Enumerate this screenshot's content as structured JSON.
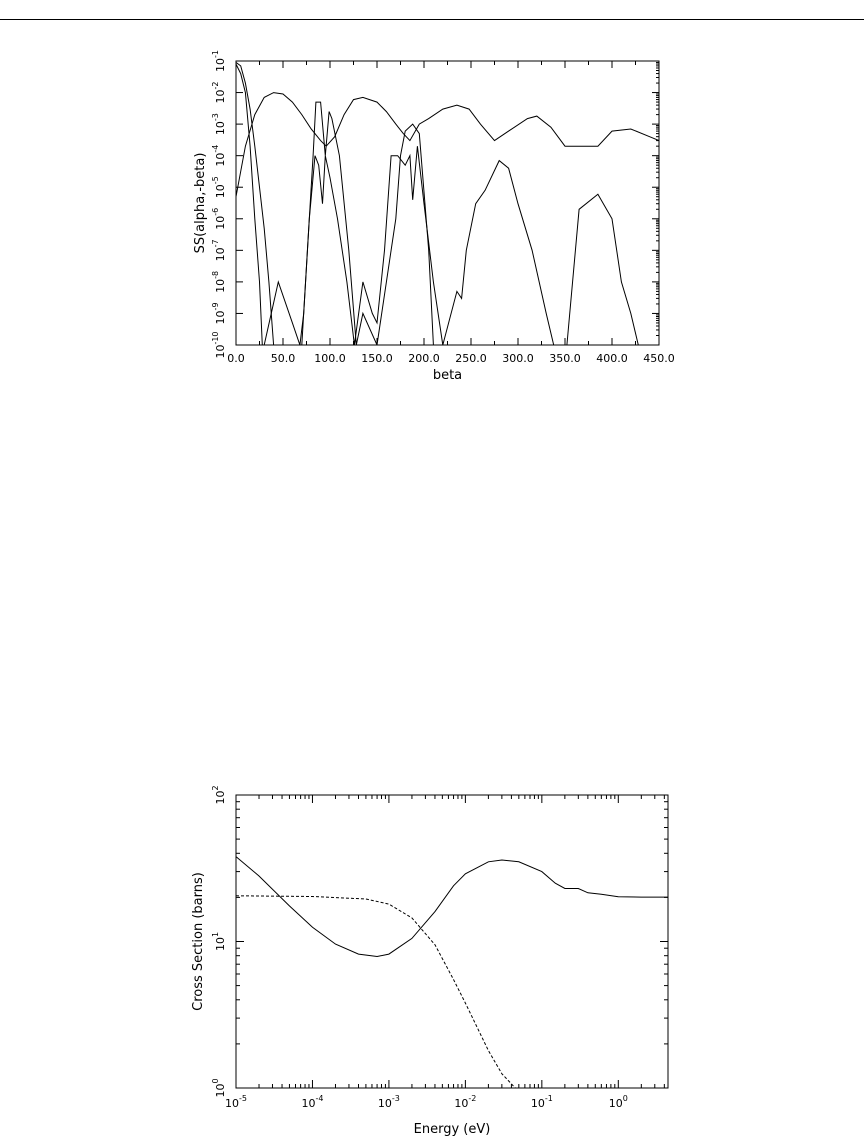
{
  "chart_data": [
    {
      "type": "line",
      "xlabel": "beta",
      "ylabel": "SS(alpha,-beta)",
      "xlim": [
        0,
        450
      ],
      "ylim_log10": [
        -10,
        -1
      ],
      "y_scale": "log",
      "x_tick_labels": [
        "0.0",
        "50.0",
        "100.0",
        "150.0",
        "200.0",
        "250.0",
        "300.0",
        "350.0",
        "400.0",
        "450.0"
      ],
      "y_tick_labels": [
        {
          "base": "10",
          "exp": "-10"
        },
        {
          "base": "10",
          "exp": "-9"
        },
        {
          "base": "10",
          "exp": "-8"
        },
        {
          "base": "10",
          "exp": "-7"
        },
        {
          "base": "10",
          "exp": "-6"
        },
        {
          "base": "10",
          "exp": "-5"
        },
        {
          "base": "10",
          "exp": "-4"
        },
        {
          "base": "10",
          "exp": "-3"
        },
        {
          "base": "10",
          "exp": "-2"
        },
        {
          "base": "10",
          "exp": "-1"
        }
      ],
      "series": [
        {
          "values": [
            [
              0,
              0.09
            ],
            [
              5,
              0.07
            ],
            [
              10,
              0.02
            ],
            [
              15,
              0.003
            ],
            [
              20,
              0.0002
            ],
            [
              25,
              1e-05
            ],
            [
              30,
              5e-07
            ],
            [
              35,
              1e-08
            ],
            [
              40,
              1e-10
            ]
          ]
        },
        {
          "values": [
            [
              0,
              0.08
            ],
            [
              5,
              0.04
            ],
            [
              10,
              0.01
            ],
            [
              15,
              0.0002
            ],
            [
              20,
              1e-06
            ],
            [
              25,
              1e-08
            ],
            [
              28,
              1e-10
            ]
          ]
        },
        {
          "values": [
            [
              0,
              5e-06
            ],
            [
              10,
              0.0002
            ],
            [
              20,
              0.002
            ],
            [
              30,
              0.007
            ],
            [
              40,
              0.01
            ],
            [
              50,
              0.009
            ],
            [
              60,
              0.005
            ],
            [
              70,
              0.002
            ],
            [
              80,
              0.0007
            ],
            [
              90,
              0.0003
            ],
            [
              96,
              0.0002
            ],
            [
              105,
              0.0004
            ],
            [
              115,
              0.002
            ],
            [
              125,
              0.006
            ],
            [
              135,
              0.007
            ],
            [
              150,
              0.005
            ],
            [
              160,
              0.0025
            ],
            [
              170,
              0.001
            ],
            [
              178,
              0.0005
            ],
            [
              185,
              0.0003
            ],
            [
              195,
              0.001
            ],
            [
              205,
              0.0015
            ],
            [
              220,
              0.003
            ],
            [
              235,
              0.004
            ],
            [
              248,
              0.003
            ],
            [
              260,
              0.001
            ],
            [
              275,
              0.0003
            ],
            [
              290,
              0.0006
            ],
            [
              310,
              0.0015
            ],
            [
              320,
              0.0018
            ],
            [
              335,
              0.0008
            ],
            [
              350,
              0.0002
            ],
            [
              370,
              0.0002
            ],
            [
              385,
              0.0002
            ],
            [
              400,
              0.0006
            ],
            [
              420,
              0.0007
            ],
            [
              440,
              0.0004
            ],
            [
              450,
              0.0003
            ]
          ]
        },
        {
          "values": [
            [
              30,
              1e-10
            ],
            [
              45,
              1e-08
            ],
            [
              60,
              5e-10
            ],
            [
              68,
              1e-10
            ],
            [
              72,
              1e-09
            ],
            [
              78,
              1e-06
            ],
            [
              82,
              0.0001
            ],
            [
              85,
              0.005
            ],
            [
              90,
              0.005
            ],
            [
              95,
              0.0001
            ],
            [
              99,
              0.0025
            ],
            [
              102,
              0.0015
            ],
            [
              110,
              0.0001
            ],
            [
              120,
              1e-07
            ],
            [
              128,
              1e-10
            ],
            [
              135,
              1e-09
            ],
            [
              150,
              1e-10
            ],
            [
              160,
              1e-08
            ],
            [
              170,
              1e-06
            ],
            [
              175,
              0.0001
            ],
            [
              180,
              0.0006
            ],
            [
              188,
              0.001
            ],
            [
              195,
              0.0005
            ],
            [
              205,
              1e-07
            ],
            [
              210,
              1e-10
            ]
          ]
        },
        {
          "values": [
            [
              70,
              1e-10
            ],
            [
              78,
              1e-06
            ],
            [
              84,
              0.0001
            ],
            [
              88,
              5e-05
            ],
            [
              92,
              3e-06
            ],
            [
              95,
              0.0001
            ],
            [
              100,
              2e-05
            ],
            [
              108,
              1e-06
            ],
            [
              118,
              1e-08
            ],
            [
              126,
              1e-10
            ],
            [
              135,
              1e-08
            ],
            [
              145,
              1e-09
            ],
            [
              150,
              5e-10
            ],
            [
              158,
              1e-07
            ],
            [
              165,
              0.0001
            ],
            [
              172,
              0.0001
            ],
            [
              180,
              5e-05
            ],
            [
              185,
              0.0001
            ],
            [
              188,
              4e-06
            ],
            [
              193,
              0.0002
            ],
            [
              200,
              3e-06
            ],
            [
              210,
              1e-08
            ],
            [
              220,
              1e-10
            ],
            [
              235,
              5e-09
            ],
            [
              240,
              3e-09
            ],
            [
              245,
              1e-07
            ],
            [
              255,
              3e-06
            ],
            [
              265,
              8e-06
            ],
            [
              280,
              7e-05
            ],
            [
              290,
              4e-05
            ],
            [
              300,
              3e-06
            ],
            [
              315,
              1e-07
            ],
            [
              330,
              1e-09
            ],
            [
              338,
              1e-10
            ],
            [
              352,
              1e-10
            ],
            [
              365,
              2e-06
            ],
            [
              385,
              6e-06
            ],
            [
              400,
              1e-06
            ],
            [
              410,
              1e-08
            ],
            [
              420,
              1e-09
            ],
            [
              428,
              1e-10
            ]
          ]
        }
      ]
    },
    {
      "type": "line",
      "xlabel": "Energy (eV)",
      "ylabel": "Cross Section (barns)",
      "x_scale": "log",
      "y_scale": "log",
      "xlim_log10": [
        -5,
        0.65
      ],
      "ylim_log10": [
        0,
        2
      ],
      "x_tick_labels": [
        {
          "base": "10",
          "exp": "-5"
        },
        {
          "base": "10",
          "exp": "-4"
        },
        {
          "base": "10",
          "exp": "-3"
        },
        {
          "base": "10",
          "exp": "-2"
        },
        {
          "base": "10",
          "exp": "-1"
        },
        {
          "base": "10",
          "exp": "0"
        }
      ],
      "y_tick_labels": [
        {
          "base": "10",
          "exp": "0"
        },
        {
          "base": "10",
          "exp": "1"
        },
        {
          "base": "10",
          "exp": "2"
        }
      ],
      "series": [
        {
          "style": "solid",
          "values": [
            [
              1e-05,
              38
            ],
            [
              2e-05,
              28
            ],
            [
              5e-05,
              17.5
            ],
            [
              0.0001,
              12.5
            ],
            [
              0.0002,
              9.6
            ],
            [
              0.0004,
              8.2
            ],
            [
              0.0007,
              7.9
            ],
            [
              0.001,
              8.2
            ],
            [
              0.002,
              10.5
            ],
            [
              0.004,
              16
            ],
            [
              0.007,
              24
            ],
            [
              0.01,
              29
            ],
            [
              0.02,
              35
            ],
            [
              0.03,
              36
            ],
            [
              0.05,
              35
            ],
            [
              0.1,
              30
            ],
            [
              0.15,
              25
            ],
            [
              0.2,
              23
            ],
            [
              0.3,
              23
            ],
            [
              0.4,
              21.5
            ],
            [
              0.6,
              21
            ],
            [
              1,
              20.2
            ],
            [
              2,
              20.1
            ],
            [
              4.5,
              20.1
            ],
            [
              4.5,
              1
            ]
          ]
        },
        {
          "style": "dashed",
          "values": [
            [
              1e-05,
              20.5
            ],
            [
              0.0001,
              20.3
            ],
            [
              0.0005,
              19.5
            ],
            [
              0.001,
              18
            ],
            [
              0.002,
              14.5
            ],
            [
              0.004,
              9.5
            ],
            [
              0.007,
              5.5
            ],
            [
              0.01,
              3.8
            ],
            [
              0.02,
              1.8
            ],
            [
              0.03,
              1.25
            ],
            [
              0.045,
              1.0
            ]
          ]
        }
      ]
    }
  ]
}
